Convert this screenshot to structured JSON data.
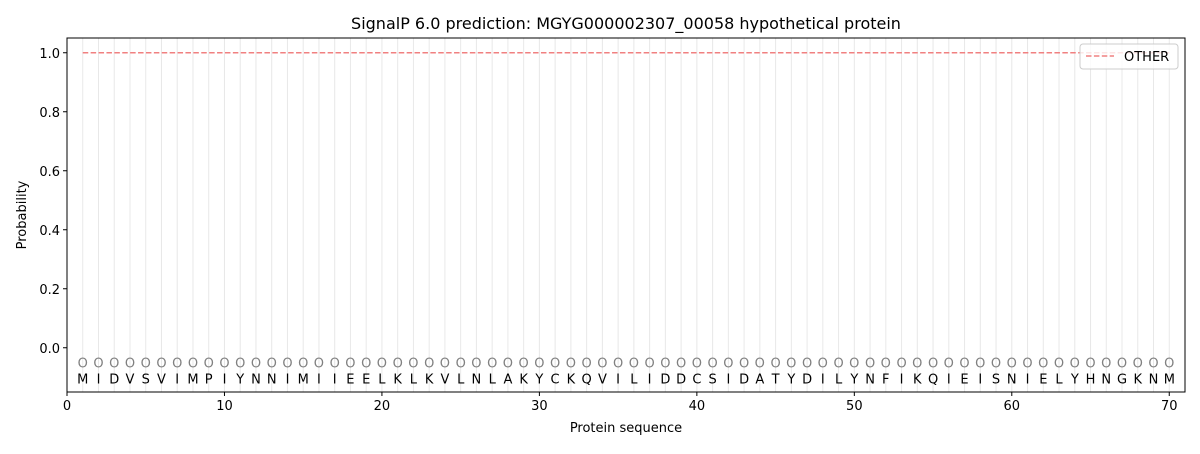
{
  "chart_data": {
    "type": "line",
    "title": "SignalP 6.0 prediction: MGYG000002307_00058 hypothetical protein",
    "xlabel": "Protein sequence",
    "ylabel": "Probability",
    "xlim": [
      0,
      71
    ],
    "ylim": [
      -0.15,
      1.05
    ],
    "xticks": [
      0,
      10,
      20,
      30,
      40,
      50,
      60,
      70
    ],
    "yticks": [
      0.0,
      0.2,
      0.4,
      0.6,
      0.8,
      1.0
    ],
    "ytick_labels": [
      "0.0",
      "0.2",
      "0.4",
      "0.6",
      "0.8",
      "1.0"
    ],
    "grid": "vertical lines at each residue",
    "legend_position": "top-right",
    "sequence": "MIDVSVIMPIYNNIMIIEELKLKVLNLAKYCKQVILIDDCSIDATYDILYNFIKQIEISNIELYHNGKNM",
    "predicted_labels": "OOOOOOOOOOOOOOOOOOOOOOOOOOOOOOOOOOOOOOOOOOOOOOOOOOOOOOOOOOOOOOOOOOOOOO",
    "series": [
      {
        "name": "OTHER",
        "color": "#f08080",
        "style": "dashed",
        "x_start": 1,
        "x_end": 70,
        "value": 1.0
      }
    ]
  }
}
